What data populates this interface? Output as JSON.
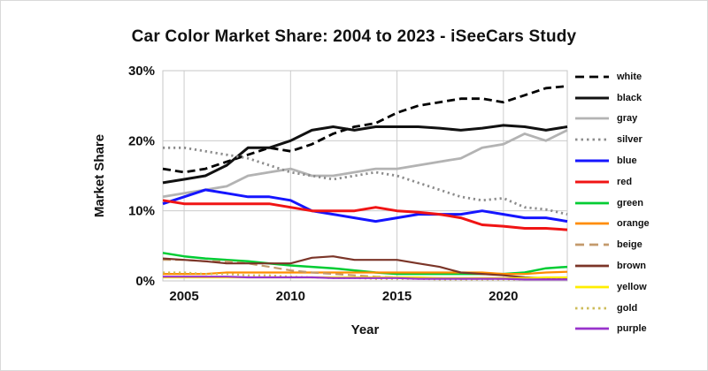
{
  "chart_data": {
    "type": "line",
    "title": "Car Color Market Share: 2004 to 2023 - iSeeCars Study",
    "xlabel": "Year",
    "ylabel": "Market Share",
    "x": [
      2004,
      2005,
      2006,
      2007,
      2008,
      2009,
      2010,
      2011,
      2012,
      2013,
      2014,
      2015,
      2016,
      2017,
      2018,
      2019,
      2020,
      2021,
      2022,
      2023
    ],
    "xticks": [
      2005,
      2010,
      2015,
      2020
    ],
    "ylim": [
      0,
      30
    ],
    "yticks": [
      0,
      10,
      20,
      30
    ],
    "ytick_suffix": "%",
    "grid": true,
    "legend_position": "right",
    "series": [
      {
        "name": "white",
        "color": "#000000",
        "dash": "dashed",
        "width": 2.8,
        "values": [
          16,
          15.5,
          16,
          17,
          18,
          19,
          18.5,
          19.5,
          21,
          22,
          22.5,
          24,
          25,
          25.5,
          26,
          26,
          25.5,
          26.5,
          27.5,
          27.8
        ]
      },
      {
        "name": "black",
        "color": "#111111",
        "dash": "solid",
        "width": 3,
        "values": [
          14,
          14.5,
          15,
          16.5,
          19,
          19,
          20,
          21.5,
          22,
          21.5,
          22,
          22,
          22,
          21.8,
          21.5,
          21.8,
          22.2,
          22,
          21.5,
          22
        ]
      },
      {
        "name": "gray",
        "color": "#b3b3b3",
        "dash": "solid",
        "width": 2.8,
        "values": [
          12,
          12.5,
          13,
          13.5,
          15,
          15.5,
          16,
          15,
          15,
          15.5,
          16,
          16,
          16.5,
          17,
          17.5,
          19,
          19.5,
          21,
          20,
          21.5
        ]
      },
      {
        "name": "silver",
        "color": "#8c8c8c",
        "dash": "dotted",
        "width": 2.8,
        "values": [
          19,
          19,
          18.5,
          18,
          17.5,
          16.5,
          15.5,
          15,
          14.5,
          15,
          15.5,
          15,
          14,
          13,
          12,
          11.5,
          11.8,
          10.5,
          10.2,
          9.5
        ]
      },
      {
        "name": "blue",
        "color": "#1515ff",
        "dash": "solid",
        "width": 3,
        "values": [
          11,
          12,
          13,
          12.5,
          12,
          12,
          11.5,
          10,
          9.5,
          9,
          8.5,
          9,
          9.5,
          9.5,
          9.5,
          10,
          9.5,
          9,
          9,
          8.5
        ]
      },
      {
        "name": "red",
        "color": "#f01414",
        "dash": "solid",
        "width": 3,
        "values": [
          11.5,
          11,
          11,
          11,
          11,
          11,
          10.5,
          10,
          10,
          10,
          10.5,
          10,
          9.8,
          9.5,
          9,
          8,
          7.8,
          7.5,
          7.5,
          7.3
        ]
      },
      {
        "name": "green",
        "color": "#00cc33",
        "dash": "solid",
        "width": 2.5,
        "values": [
          4,
          3.5,
          3.2,
          3,
          2.8,
          2.5,
          2.2,
          2,
          1.8,
          1.5,
          1.2,
          1,
          1,
          1,
          1,
          1,
          1,
          1.2,
          1.8,
          2
        ]
      },
      {
        "name": "orange",
        "color": "#ff8c00",
        "dash": "solid",
        "width": 2.2,
        "values": [
          1,
          1,
          1,
          1.2,
          1.2,
          1.2,
          1.2,
          1.2,
          1.2,
          1.2,
          1.2,
          1.2,
          1.2,
          1.2,
          1.2,
          1.2,
          1,
          1,
          1.2,
          1.3
        ]
      },
      {
        "name": "beige",
        "color": "#c49a6c",
        "dash": "dashed",
        "width": 2.2,
        "values": [
          3,
          3,
          2.8,
          2.8,
          2.5,
          2,
          1.5,
          1.2,
          1,
          0.8,
          0.6,
          0.5,
          0.4,
          0.4,
          0.3,
          0.3,
          0.3,
          0.3,
          0.3,
          0.3
        ]
      },
      {
        "name": "brown",
        "color": "#7b3528",
        "dash": "solid",
        "width": 2.2,
        "values": [
          3.2,
          3,
          2.8,
          2.5,
          2.5,
          2.5,
          2.5,
          3.3,
          3.5,
          3,
          3,
          3,
          2.5,
          2,
          1.2,
          1,
          0.8,
          0.5,
          0.4,
          0.3
        ]
      },
      {
        "name": "yellow",
        "color": "#ffee00",
        "dash": "solid",
        "width": 2.2,
        "values": [
          0.5,
          0.5,
          0.5,
          0.5,
          0.5,
          0.5,
          0.5,
          0.5,
          0.5,
          0.5,
          0.5,
          0.5,
          0.5,
          0.4,
          0.4,
          0.4,
          0.4,
          0.4,
          0.5,
          0.5
        ]
      },
      {
        "name": "gold",
        "color": "#cdbc5a",
        "dash": "dotted",
        "width": 2.2,
        "values": [
          1.2,
          1.2,
          1,
          1,
          0.8,
          0.8,
          0.6,
          0.5,
          0.4,
          0.4,
          0.3,
          0.3,
          0.3,
          0.2,
          0.2,
          0.2,
          0.2,
          0.2,
          0.2,
          0.2
        ]
      },
      {
        "name": "purple",
        "color": "#9933cc",
        "dash": "solid",
        "width": 2.2,
        "values": [
          0.6,
          0.6,
          0.6,
          0.6,
          0.5,
          0.5,
          0.5,
          0.5,
          0.4,
          0.4,
          0.4,
          0.4,
          0.3,
          0.3,
          0.3,
          0.3,
          0.3,
          0.2,
          0.2,
          0.2
        ]
      }
    ]
  }
}
